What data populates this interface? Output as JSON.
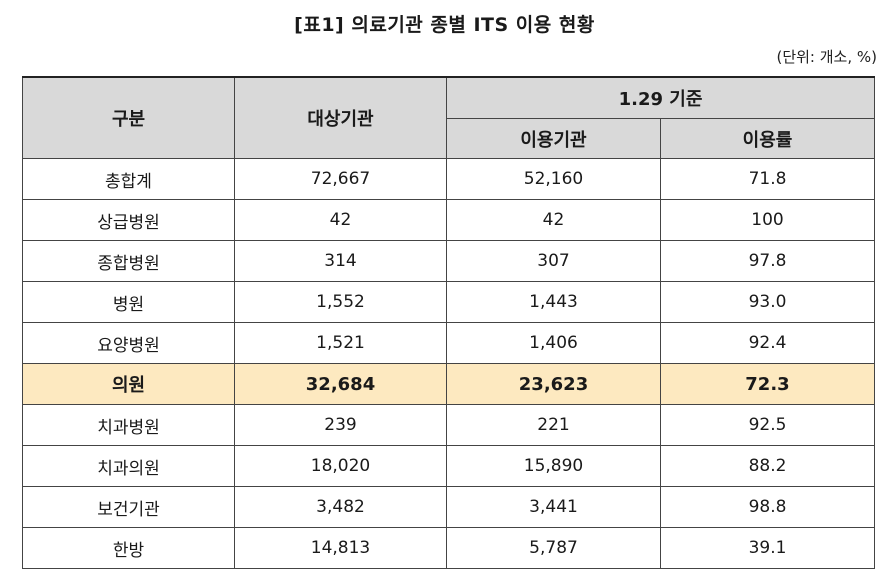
{
  "title": "[표1] 의료기관 종별 ITS 이용 현황",
  "unit": "(단위: 개소, %)",
  "table": {
    "headers": {
      "category": "구분",
      "target": "대상기관",
      "group": "1.29 기준",
      "used": "이용기관",
      "rate": "이용률"
    },
    "rows": [
      {
        "category": "총합계",
        "target": "72,667",
        "used": "52,160",
        "rate": "71.8"
      },
      {
        "category": "상급병원",
        "target": "42",
        "used": "42",
        "rate": "100"
      },
      {
        "category": "종합병원",
        "target": "314",
        "used": "307",
        "rate": "97.8"
      },
      {
        "category": "병원",
        "target": "1,552",
        "used": "1,443",
        "rate": "93.0"
      },
      {
        "category": "요양병원",
        "target": "1,521",
        "used": "1,406",
        "rate": "92.4"
      },
      {
        "category": "의원",
        "target": "32,684",
        "used": "23,623",
        "rate": "72.3"
      },
      {
        "category": "치과병원",
        "target": "239",
        "used": "221",
        "rate": "92.5"
      },
      {
        "category": "치과의원",
        "target": "18,020",
        "used": "15,890",
        "rate": "88.2"
      },
      {
        "category": "보건기관",
        "target": "3,482",
        "used": "3,441",
        "rate": "98.8"
      },
      {
        "category": "한방",
        "target": "14,813",
        "used": "5,787",
        "rate": "39.1"
      }
    ],
    "highlight_row_index": 5,
    "highlight_color": "#fde9c0",
    "header_color": "#d9d9d9"
  }
}
